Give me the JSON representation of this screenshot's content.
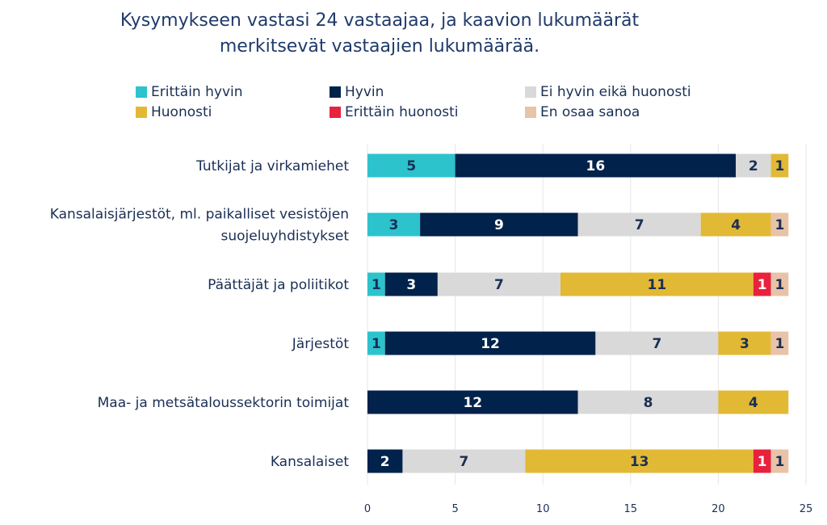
{
  "chart_data": {
    "type": "bar",
    "orientation": "horizontal",
    "stacked": true,
    "title": "Kysymykseen vastasi 24 vastaajaa, ja kaavion lukumäärät merkitsevät vastaajien lukumäärää.",
    "title_lines": [
      "Kysymykseen vastasi 24 vastaajaa, ja kaavion lukumäärät",
      "merkitsevät vastaajien lukumäärää."
    ],
    "categories": [
      "Tutkijat ja virkamiehet",
      "Kansalaisjärjestöt, ml. paikalliset vesistöjen suojeluyhdistykset",
      "Päättäjät ja poliitikot",
      "Järjestöt",
      "Maa- ja metsätaloussektorin toimijat",
      "Kansalaiset"
    ],
    "category_lines": [
      [
        "Tutkijat ja virkamiehet"
      ],
      [
        "Kansalaisjärjestöt, ml. paikalliset vesistöjen",
        "suojeluyhdistykset"
      ],
      [
        "Päättäjät ja poliitikot"
      ],
      [
        "Järjestöt"
      ],
      [
        "Maa- ja metsätaloussektorin toimijat"
      ],
      [
        "Kansalaiset"
      ]
    ],
    "series": [
      {
        "name": "Erittäin hyvin",
        "color": "#2cc3cd",
        "values": [
          5,
          3,
          1,
          1,
          0,
          0
        ]
      },
      {
        "name": "Hyvin",
        "color": "#00224b",
        "values": [
          16,
          9,
          3,
          12,
          12,
          2
        ]
      },
      {
        "name": "Ei hyvin eikä huonosti",
        "color": "#d9d9d9",
        "values": [
          2,
          7,
          7,
          7,
          8,
          7
        ]
      },
      {
        "name": "Huonosti",
        "color": "#e2b935",
        "values": [
          1,
          4,
          11,
          3,
          4,
          13
        ]
      },
      {
        "name": "Erittäin huonosti",
        "color": "#e8213d",
        "values": [
          0,
          0,
          1,
          0,
          0,
          1
        ]
      },
      {
        "name": "En osaa sanoa",
        "color": "#e8c3a8",
        "values": [
          0,
          1,
          1,
          1,
          0,
          1
        ]
      }
    ],
    "xlim": [
      0,
      25
    ],
    "xticks": [
      0,
      5,
      10,
      15,
      20,
      25
    ],
    "grid": true,
    "legend_position": "top",
    "text_color": "#1a2f55"
  }
}
